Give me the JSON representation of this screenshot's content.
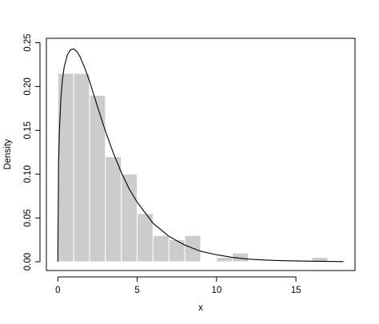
{
  "chart_data": {
    "type": "bar",
    "title": "",
    "xlabel": "x",
    "ylabel": "Density",
    "xlim": [
      -0.72,
      18.72
    ],
    "ylim": [
      -0.01,
      0.255
    ],
    "x_ticks": [
      0,
      5,
      10,
      15
    ],
    "y_ticks": [
      0.0,
      0.05,
      0.1,
      0.15,
      0.2,
      0.25
    ],
    "x_tick_labels": [
      "0",
      "5",
      "10",
      "15"
    ],
    "y_tick_labels": [
      "0.00",
      "0.05",
      "0.10",
      "0.15",
      "0.20",
      "0.25"
    ],
    "grid": false,
    "bins": [
      {
        "x0": 0,
        "x1": 1,
        "density": 0.215
      },
      {
        "x0": 1,
        "x1": 2,
        "density": 0.215
      },
      {
        "x0": 2,
        "x1": 3,
        "density": 0.19
      },
      {
        "x0": 3,
        "x1": 4,
        "density": 0.12
      },
      {
        "x0": 4,
        "x1": 5,
        "density": 0.1
      },
      {
        "x0": 5,
        "x1": 6,
        "density": 0.055
      },
      {
        "x0": 6,
        "x1": 7,
        "density": 0.03
      },
      {
        "x0": 7,
        "x1": 8,
        "density": 0.025
      },
      {
        "x0": 8,
        "x1": 9,
        "density": 0.03
      },
      {
        "x0": 9,
        "x1": 10,
        "density": 0.0
      },
      {
        "x0": 10,
        "x1": 11,
        "density": 0.005
      },
      {
        "x0": 11,
        "x1": 12,
        "density": 0.01
      },
      {
        "x0": 12,
        "x1": 13,
        "density": 0.0
      },
      {
        "x0": 13,
        "x1": 14,
        "density": 0.0
      },
      {
        "x0": 14,
        "x1": 15,
        "density": 0.0
      },
      {
        "x0": 15,
        "x1": 16,
        "density": 0.0
      },
      {
        "x0": 16,
        "x1": 17,
        "density": 0.005
      }
    ],
    "curve": {
      "x": [
        0,
        0.05,
        0.1,
        0.2,
        0.3,
        0.4,
        0.6,
        0.8,
        1.0,
        1.2,
        1.4,
        1.7,
        2.0,
        2.5,
        3.0,
        3.5,
        4.0,
        4.5,
        5.0,
        6.0,
        7.0,
        8.0,
        9.0,
        10.0,
        11.0,
        12.0,
        13.0,
        14.0,
        16.0,
        18.0
      ],
      "y": [
        0,
        0.115,
        0.15,
        0.188,
        0.209,
        0.222,
        0.236,
        0.242,
        0.243,
        0.24,
        0.234,
        0.221,
        0.206,
        0.177,
        0.149,
        0.124,
        0.102,
        0.083,
        0.068,
        0.044,
        0.029,
        0.019,
        0.012,
        0.008,
        0.005,
        0.003,
        0.002,
        0.0013,
        0.0006,
        0.0002
      ]
    }
  }
}
